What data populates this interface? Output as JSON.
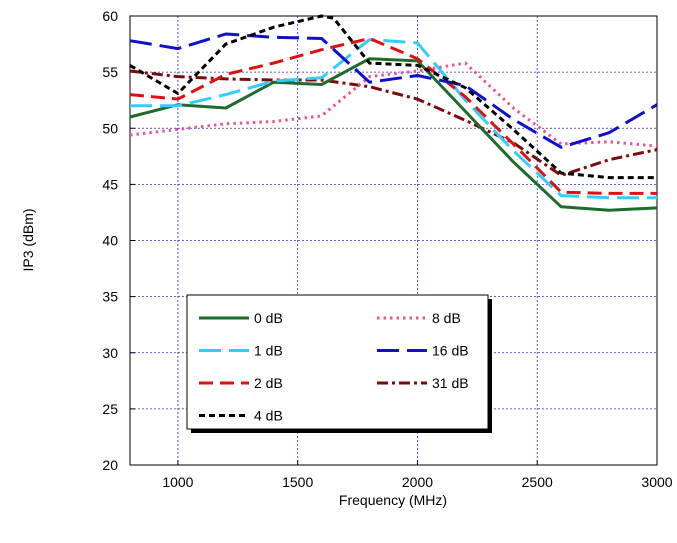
{
  "chart_data": {
    "type": "line",
    "title": "",
    "xlabel": "Frequency (MHz)",
    "ylabel": "IP3 (dBm)",
    "xlim": [
      800,
      3000
    ],
    "ylim": [
      20,
      60
    ],
    "xticks": [
      1000,
      1500,
      2000,
      2500,
      3000
    ],
    "yticks": [
      20,
      25,
      30,
      35,
      40,
      45,
      50,
      55,
      60
    ],
    "grid": true,
    "legend_position": "lower-left",
    "series": [
      {
        "name": "0 dB",
        "color": "#1f6b2e",
        "dash": "solid",
        "x": [
          800,
          1000,
          1200,
          1400,
          1600,
          1800,
          2000,
          2200,
          2400,
          2600,
          2800,
          3000
        ],
        "y": [
          51.0,
          52.1,
          51.8,
          54.1,
          53.9,
          56.2,
          56.0,
          51.5,
          47.0,
          43.0,
          42.7,
          42.9
        ]
      },
      {
        "name": "1 dB",
        "color": "#33ccff",
        "dash": "longdash",
        "x": [
          800,
          1000,
          1200,
          1400,
          1600,
          1800,
          2000,
          2200,
          2400,
          2600,
          2800,
          3000
        ],
        "y": [
          52.0,
          52.0,
          53.0,
          54.2,
          54.5,
          57.9,
          57.6,
          52.5,
          48.0,
          44.0,
          43.8,
          43.8
        ]
      },
      {
        "name": "2 dB",
        "color": "#dd1111",
        "dash": "dash",
        "x": [
          800,
          1000,
          1200,
          1400,
          1600,
          1800,
          2000,
          2200,
          2400,
          2600,
          2800,
          3000
        ],
        "y": [
          53.0,
          52.6,
          54.8,
          55.8,
          57.0,
          58.0,
          56.2,
          52.8,
          48.6,
          44.3,
          44.2,
          44.2
        ]
      },
      {
        "name": "4 dB",
        "color": "#000000",
        "dash": "shortdash",
        "x": [
          800,
          1000,
          1200,
          1400,
          1600,
          1650,
          1800,
          2000,
          2200,
          2400,
          2600,
          2800,
          3000
        ],
        "y": [
          55.6,
          53.1,
          57.5,
          59.0,
          60.0,
          59.8,
          55.8,
          55.6,
          53.6,
          49.9,
          46.0,
          45.6,
          45.6
        ]
      },
      {
        "name": "8 dB",
        "color": "#e8559a",
        "dash": "dot",
        "x": [
          800,
          1000,
          1200,
          1400,
          1600,
          1800,
          2000,
          2200,
          2400,
          2600,
          2800,
          3000
        ],
        "y": [
          49.4,
          49.9,
          50.4,
          50.6,
          51.1,
          54.6,
          55.1,
          55.8,
          51.8,
          48.6,
          48.8,
          48.4
        ]
      },
      {
        "name": "16 dB",
        "color": "#1010cc",
        "dash": "longdash",
        "x": [
          800,
          1000,
          1200,
          1400,
          1600,
          1800,
          2000,
          2200,
          2400,
          2600,
          2800,
          3000
        ],
        "y": [
          57.8,
          57.1,
          58.4,
          58.1,
          58.0,
          54.1,
          54.7,
          53.8,
          50.8,
          48.3,
          49.6,
          52.1
        ]
      },
      {
        "name": "31 dB",
        "color": "#7a0b0b",
        "dash": "dashdot",
        "x": [
          800,
          1000,
          1200,
          1400,
          1600,
          1800,
          2000,
          2200,
          2400,
          2600,
          2800,
          3000
        ],
        "y": [
          55.1,
          54.6,
          54.4,
          54.3,
          54.3,
          53.7,
          52.6,
          50.7,
          48.7,
          45.8,
          47.2,
          48.1
        ]
      }
    ]
  }
}
